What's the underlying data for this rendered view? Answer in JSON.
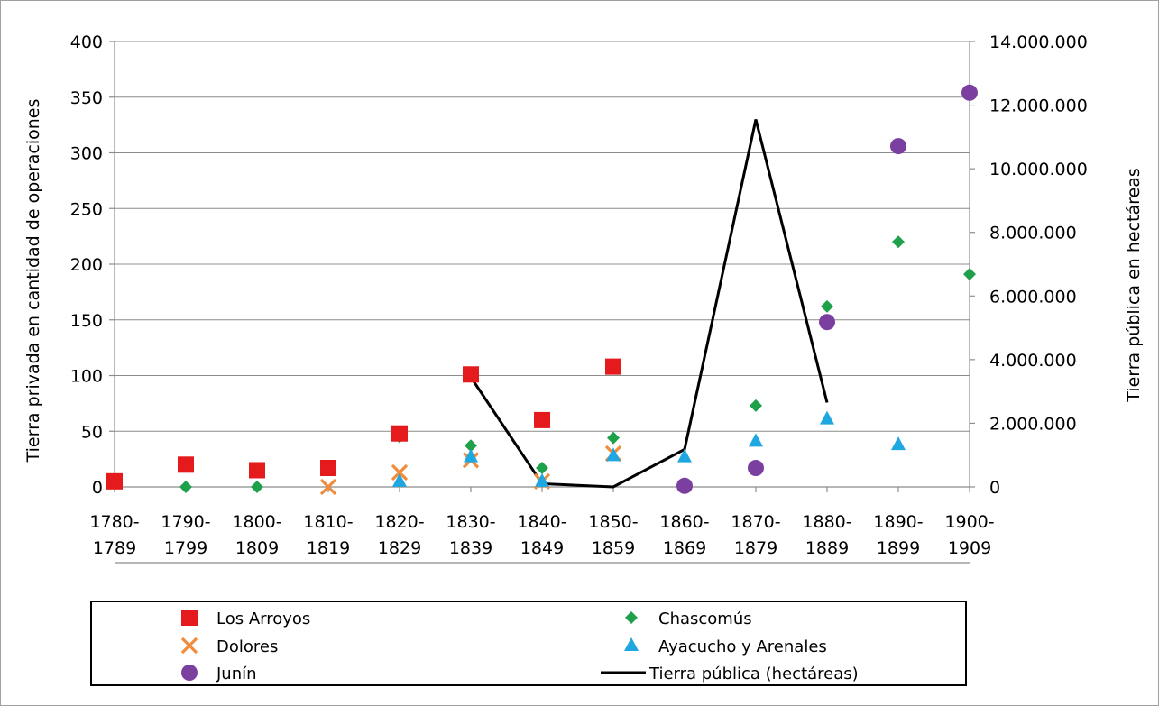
{
  "chart_data": {
    "type": "scatter",
    "categories": [
      [
        "1780-",
        "1789"
      ],
      [
        "1790-",
        "1799"
      ],
      [
        "1800-",
        "1809"
      ],
      [
        "1810-",
        "1819"
      ],
      [
        "1820-",
        "1829"
      ],
      [
        "1830-",
        "1839"
      ],
      [
        "1840-",
        "1849"
      ],
      [
        "1850-",
        "1859"
      ],
      [
        "1860-",
        "1869"
      ],
      [
        "1870-",
        "1879"
      ],
      [
        "1880-",
        "1889"
      ],
      [
        "1890-",
        "1899"
      ],
      [
        "1900-",
        "1909"
      ]
    ],
    "ylabel": "Tierra privada en cantidad de operaciones",
    "y2label": "Tierra pública en hectáreas",
    "ylim": [
      0,
      400
    ],
    "y2lim": [
      0,
      14000000
    ],
    "yticks": [
      0,
      50,
      100,
      150,
      200,
      250,
      300,
      350,
      400
    ],
    "y2ticks": [
      "0",
      "2.000.000",
      "4.000.000",
      "6.000.000",
      "8.000.000",
      "10.000.000",
      "12.000.000",
      "14.000.000"
    ],
    "grid": true,
    "legend_position": "bottom",
    "series": [
      {
        "name": "Los Arroyos",
        "kind": "marker",
        "marker": "square",
        "color": "#e41a1c",
        "axis": "left",
        "values": [
          5,
          20,
          15,
          17,
          48,
          101,
          60,
          108,
          null,
          null,
          null,
          null,
          null
        ]
      },
      {
        "name": "Chascomús",
        "kind": "marker",
        "marker": "diamond",
        "color": "#1fa04a",
        "axis": "left",
        "values": [
          null,
          0,
          0,
          null,
          45,
          37,
          17,
          44,
          null,
          73,
          162,
          220,
          191
        ]
      },
      {
        "name": "Dolores",
        "kind": "marker",
        "marker": "x",
        "color": "#f08c3c",
        "axis": "left",
        "values": [
          null,
          null,
          null,
          0,
          13,
          24,
          5,
          30,
          null,
          null,
          null,
          null,
          null
        ]
      },
      {
        "name": "Ayacucho y Arenales",
        "kind": "marker",
        "marker": "triangle",
        "color": "#1ea7e1",
        "axis": "left",
        "values": [
          null,
          null,
          null,
          null,
          5,
          27,
          5,
          28,
          27,
          41,
          61,
          38,
          null
        ]
      },
      {
        "name": "Junín",
        "kind": "marker",
        "marker": "circle",
        "color": "#7b3fa0",
        "axis": "left",
        "values": [
          null,
          null,
          null,
          null,
          null,
          null,
          null,
          null,
          1,
          17,
          148,
          306,
          354
        ]
      },
      {
        "name": "Tierra pública (hectáreas)",
        "kind": "line",
        "color": "#000000",
        "axis": "right",
        "values": [
          null,
          null,
          null,
          null,
          null,
          3450000,
          100000,
          0,
          1180000,
          11550000,
          2650000,
          null,
          null
        ]
      }
    ]
  }
}
